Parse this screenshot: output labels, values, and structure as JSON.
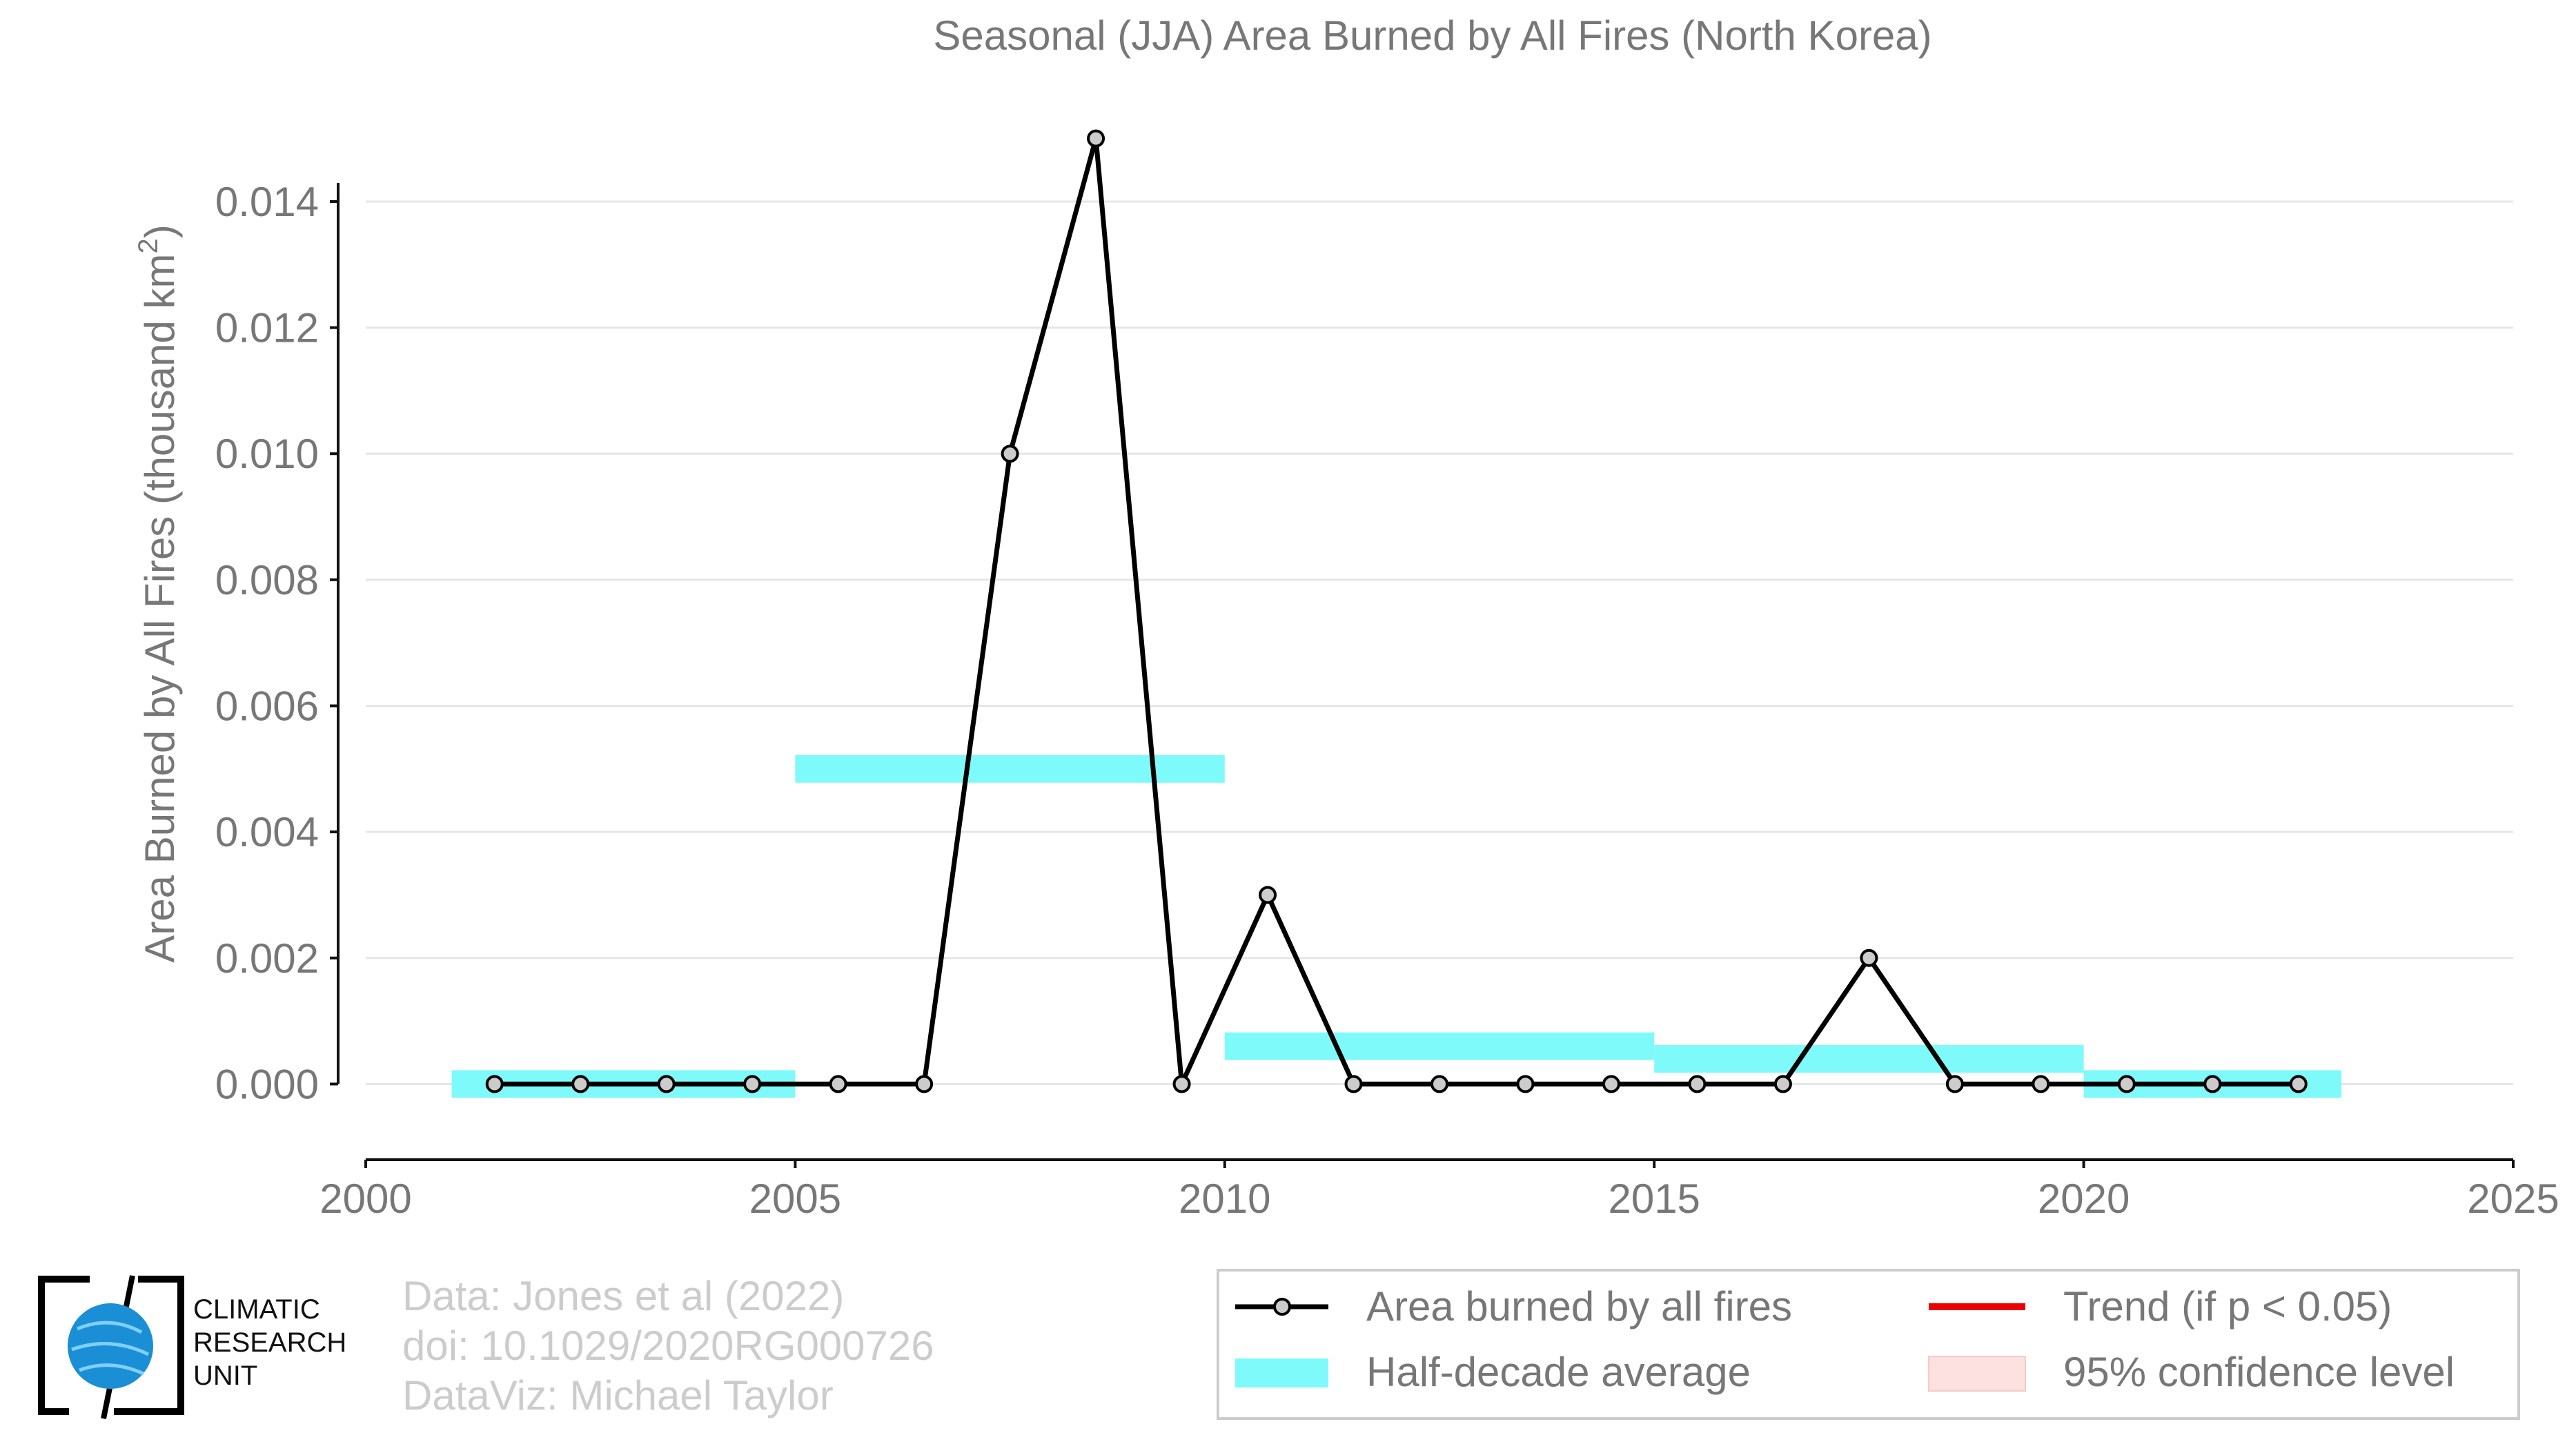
{
  "chart_data": {
    "type": "line",
    "title": "Seasonal (JJA) Area Burned by All Fires (North Korea)",
    "ylabel_prefix": "Area Burned by All Fires (thousand km",
    "ylabel_sup": "2",
    "ylabel_suffix": ")",
    "xlim": [
      2000,
      2025
    ],
    "ylim": [
      -0.0012,
      0.0155
    ],
    "x_ticks": [
      2000,
      2005,
      2010,
      2015,
      2020,
      2025
    ],
    "x_tick_labels": [
      "2000",
      "2005",
      "2010",
      "2015",
      "2020",
      "2025"
    ],
    "y_ticks": [
      0,
      0.002,
      0.004,
      0.006,
      0.008,
      0.01,
      0.012,
      0.014
    ],
    "y_tick_labels": [
      "0.000",
      "0.002",
      "0.004",
      "0.006",
      "0.008",
      "0.010",
      "0.012",
      "0.014"
    ],
    "grid": "horizontal",
    "series": [
      {
        "name": "Area burned by all fires",
        "color": "#000000",
        "marker_fill": "#cccccc",
        "x": [
          2001.5,
          2002.5,
          2003.5,
          2004.5,
          2005.5,
          2006.5,
          2007.5,
          2008.5,
          2009.5,
          2010.5,
          2011.5,
          2012.5,
          2013.5,
          2014.5,
          2015.5,
          2016.5,
          2017.5,
          2018.5,
          2019.5,
          2020.5,
          2021.5,
          2022.5
        ],
        "y": [
          0,
          0,
          0,
          0,
          0,
          0,
          0.01,
          0.015,
          0,
          0.003,
          0,
          0,
          0,
          0,
          0,
          0,
          0.002,
          0,
          0,
          0,
          0,
          0
        ]
      }
    ],
    "half_decade_average": {
      "name": "Half-decade average",
      "color": "#7ffafa",
      "segments": [
        {
          "x0": 2001,
          "x1": 2005,
          "y": 0.0
        },
        {
          "x0": 2005,
          "x1": 2010,
          "y": 0.005
        },
        {
          "x0": 2010,
          "x1": 2015,
          "y": 0.0006
        },
        {
          "x0": 2015,
          "x1": 2020,
          "y": 0.0004
        },
        {
          "x0": 2020,
          "x1": 2023,
          "y": 0.0
        }
      ]
    },
    "legend": {
      "placement": "bottom-right",
      "items": [
        {
          "label": "Area burned by all fires",
          "kind": "line-marker",
          "color": "#000000"
        },
        {
          "label": "Trend (if p < 0.05)",
          "kind": "line",
          "color": "#ee0000"
        },
        {
          "label": "Half-decade average",
          "kind": "band",
          "color": "#7ffafa"
        },
        {
          "label": "95% confidence level",
          "kind": "patch",
          "color": "#fde0e0"
        }
      ]
    }
  },
  "credits": {
    "line1": "Data: Jones et al (2022)",
    "line2": "doi: 10.1029/2020RG000726",
    "line3": "DataViz: Michael Taylor"
  },
  "logo": {
    "line1": "CLIMATIC",
    "line2": "RESEARCH",
    "line3": "UNIT"
  }
}
